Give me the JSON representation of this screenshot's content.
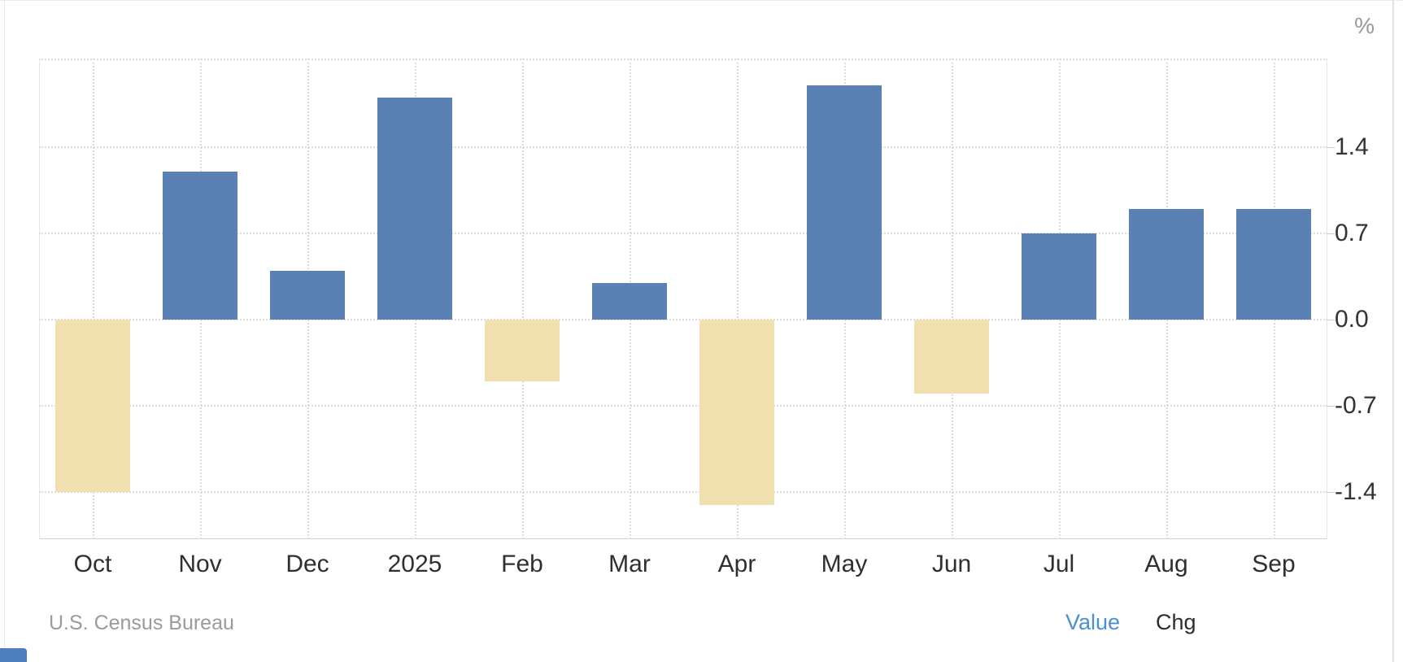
{
  "header": {
    "unit_label": "%"
  },
  "footer": {
    "source": "U.S. Census Bureau",
    "value_label": "Value",
    "chg_label": "Chg"
  },
  "colors": {
    "positive_bar": "#5A80B4",
    "negative_bar": "#F0E0B0",
    "link_blue": "#4A90D2",
    "grid": "#DCDCDC",
    "axis_text": "#333333",
    "muted_text": "#999999"
  },
  "chart_data": {
    "type": "bar",
    "title": "",
    "xlabel": "",
    "ylabel": "%",
    "categories": [
      "Oct",
      "Nov",
      "Dec",
      "2025",
      "Feb",
      "Mar",
      "Apr",
      "May",
      "Jun",
      "Jul",
      "Aug",
      "Sep"
    ],
    "values": [
      -1.4,
      1.2,
      0.4,
      1.8,
      -0.5,
      0.3,
      -1.5,
      1.9,
      -0.6,
      0.7,
      0.9,
      0.9
    ],
    "yticks": [
      1.4,
      0.7,
      0.0,
      -0.7,
      -1.4
    ],
    "ytick_labels": [
      "1.4",
      "0.7",
      "0.0",
      "-0.7",
      "-1.4"
    ],
    "ylim": [
      -1.78,
      2.12
    ],
    "grid": "dotted horizontal lines at y ticks, dotted vertical lines at category centers",
    "legend_position": "none",
    "positive_color": "#5A80B4",
    "negative_color": "#F0E0B0",
    "source": "U.S. Census Bureau"
  }
}
